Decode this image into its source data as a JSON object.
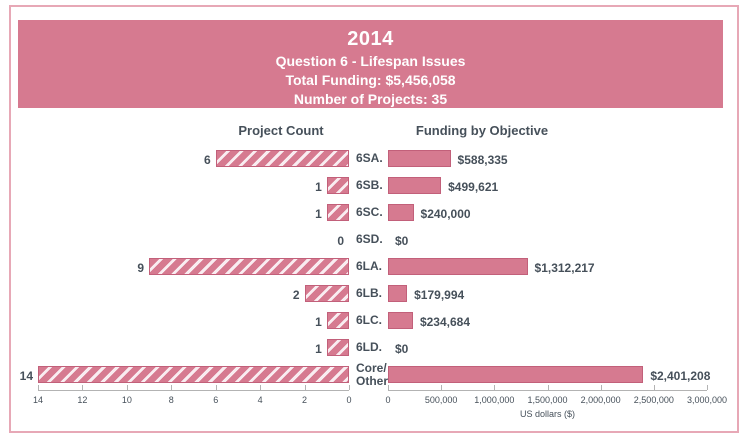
{
  "header": {
    "year": "2014",
    "question": "Question 6 - Lifespan Issues",
    "total_funding": "Total Funding: $5,456,058",
    "num_projects": "Number of Projects: 35"
  },
  "chart_data": {
    "type": "bar",
    "orientation": "horizontal",
    "categories": [
      "6SA.",
      "6SB.",
      "6SC.",
      "6SD.",
      "6LA.",
      "6LB.",
      "6LC.",
      "6LD.",
      "Core/Other"
    ],
    "categories_display": [
      "6SA.",
      "6SB.",
      "6SC.",
      "6SD.",
      "6LA.",
      "6LB.",
      "6LC.",
      "6LD.",
      "Core/\nOther"
    ],
    "series": [
      {
        "name": "Project Count",
        "direction": "left",
        "bar_style": "hatched",
        "values": [
          6,
          1,
          1,
          0,
          9,
          2,
          1,
          1,
          14
        ],
        "value_labels": [
          "6",
          "1",
          "1",
          "0",
          "9",
          "2",
          "1",
          "1",
          "14"
        ],
        "xlim": [
          0,
          14
        ],
        "tick_values": [
          14,
          12,
          10,
          8,
          6,
          4,
          2,
          0
        ],
        "tick_labels": [
          "14",
          "12",
          "10",
          "8",
          "6",
          "4",
          "2",
          "0"
        ]
      },
      {
        "name": "Funding by Objective",
        "direction": "right",
        "bar_style": "solid",
        "values": [
          588335,
          499621,
          240000,
          0,
          1312217,
          179994,
          234684,
          0,
          2401208
        ],
        "value_labels": [
          "$588,335",
          "$499,621",
          "$240,000",
          "$0",
          "$1,312,217",
          "$179,994",
          "$234,684",
          "$0",
          "$2,401,208"
        ],
        "xlim": [
          0,
          3000000
        ],
        "tick_values": [
          0,
          500000,
          1000000,
          1500000,
          2000000,
          2500000,
          3000000
        ],
        "tick_labels": [
          "0",
          "500,000",
          "1,000,000",
          "1,500,000",
          "2,000,000",
          "2,500,000",
          "3,000,000"
        ],
        "xlabel": "US dollars ($)"
      }
    ],
    "legend": "none",
    "grid": false
  },
  "colors": {
    "banner_bg": "#d67a90",
    "banner_text": "#ffffff",
    "bar_fill": "#d67a90",
    "bar_border": "#c2607a",
    "hatch_stripe": "#f9edf1",
    "frame_border": "#e7a8b6",
    "axis": "#b3b3b3",
    "text_dark": "#46505a"
  }
}
